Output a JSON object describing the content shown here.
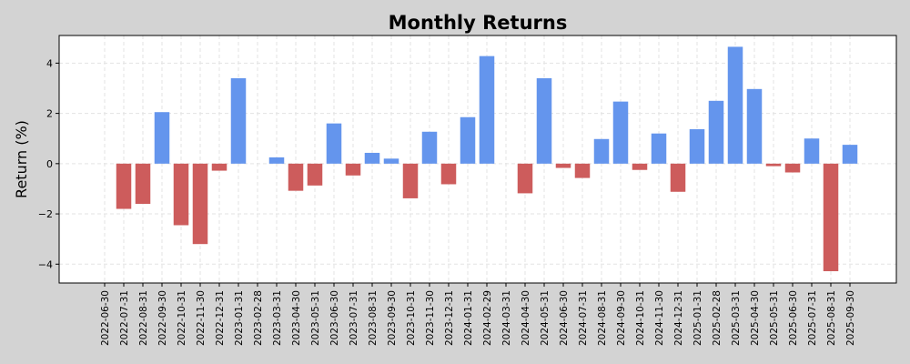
{
  "chart_data": {
    "type": "bar",
    "title": "Monthly Returns",
    "xlabel": "",
    "ylabel": "Return (%)",
    "ylim": [
      -4.75,
      5.1
    ],
    "yticks": [
      -4,
      -2,
      0,
      2,
      4
    ],
    "grid": true,
    "colors": {
      "positive": "#6495ED",
      "negative": "#CD5C5C"
    },
    "categories": [
      "2022-06-30",
      "2022-07-31",
      "2022-08-31",
      "2022-09-30",
      "2022-10-31",
      "2022-11-30",
      "2022-12-31",
      "2023-01-31",
      "2023-02-28",
      "2023-03-31",
      "2023-04-30",
      "2023-05-31",
      "2023-06-30",
      "2023-07-31",
      "2023-08-31",
      "2023-09-30",
      "2023-10-31",
      "2023-11-30",
      "2023-12-31",
      "2024-01-31",
      "2024-02-29",
      "2024-03-31",
      "2024-04-30",
      "2024-05-31",
      "2024-06-30",
      "2024-07-31",
      "2024-08-31",
      "2024-09-30",
      "2024-10-31",
      "2024-11-30",
      "2024-12-31",
      "2025-01-31",
      "2025-02-28",
      "2025-03-31",
      "2025-04-30",
      "2025-05-31",
      "2025-06-30",
      "2025-07-31",
      "2025-08-31",
      "2025-09-30"
    ],
    "values": [
      0,
      -1.8,
      -1.6,
      2.05,
      -2.45,
      -3.2,
      -0.28,
      3.4,
      0,
      0.25,
      -1.08,
      -0.87,
      1.6,
      -0.47,
      0.43,
      0.2,
      -1.38,
      1.27,
      -0.82,
      1.85,
      4.28,
      0,
      -1.18,
      3.4,
      -0.17,
      -0.57,
      0.98,
      2.47,
      -0.25,
      1.2,
      -1.12,
      1.37,
      2.5,
      4.65,
      2.97,
      -0.1,
      -0.35,
      1.0,
      -4.28,
      0.75
    ]
  }
}
